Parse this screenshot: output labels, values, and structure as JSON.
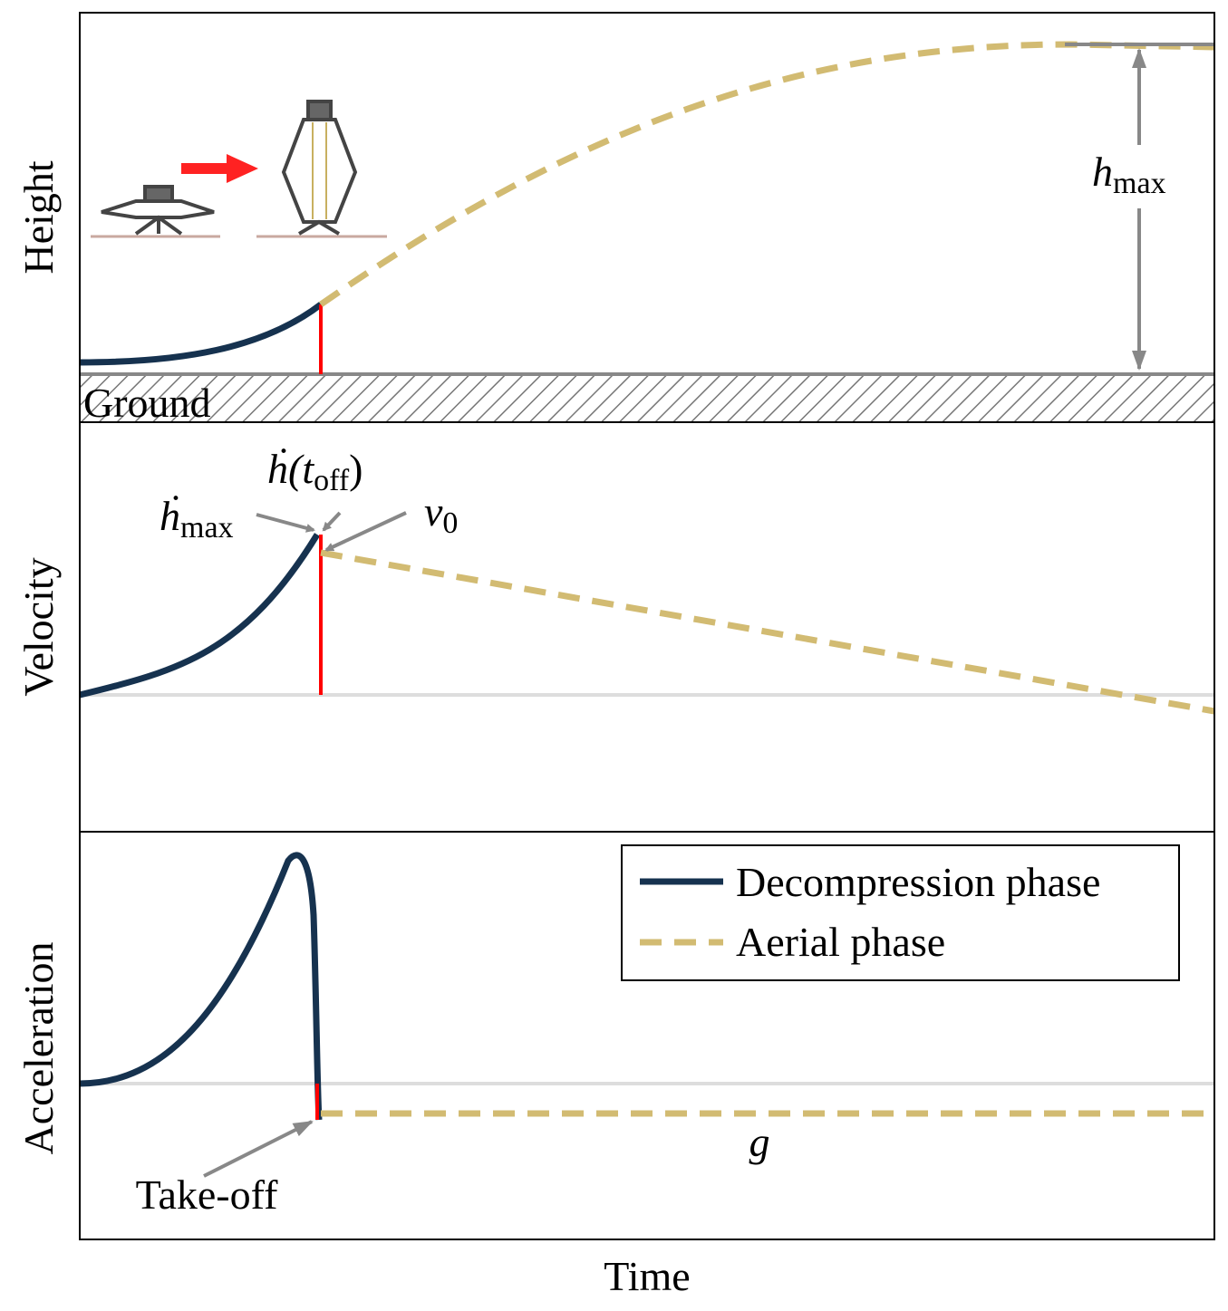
{
  "panels": [
    {
      "label": "Height"
    },
    {
      "label": "Velocity"
    },
    {
      "label": "Acceleration"
    }
  ],
  "x_label": "Time",
  "ground": "Ground",
  "annotations": {
    "h_max": {
      "base": "h",
      "sub": "max"
    },
    "hdot_toff": {
      "base": "ḣ(t",
      "sub": "off",
      "end": ")"
    },
    "hdot_max": {
      "base": "ḣ",
      "sub": "max"
    },
    "v0": {
      "base": "v",
      "sub": "0"
    },
    "g": "g",
    "takeoff": "Take-off"
  },
  "legend": [
    {
      "name": "Decompression phase"
    },
    {
      "name": "Aerial phase"
    }
  ]
}
